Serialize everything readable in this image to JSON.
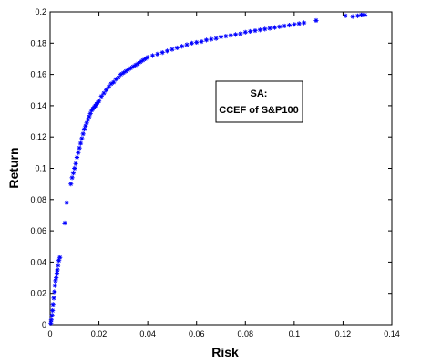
{
  "chart_data": {
    "type": "scatter",
    "xlabel": "Risk",
    "ylabel": "Return",
    "xlim": [
      0,
      0.14
    ],
    "ylim": [
      0,
      0.2
    ],
    "x_ticks": [
      "0",
      "0.02",
      "0.04",
      "0.06",
      "0.08",
      "0.1",
      "0.12",
      "0.14"
    ],
    "y_ticks": [
      "0",
      "0.02",
      "0.04",
      "0.06",
      "0.08",
      "0.1",
      "0.12",
      "0.14",
      "0.16",
      "0.18",
      "0.2"
    ],
    "grid": false,
    "legend_position": "center-right",
    "legend_lines": [
      "SA:",
      "CCEF of S&P100"
    ],
    "marker_color": "#0000ff",
    "series": [
      {
        "x": [
          0.0003,
          0.0005,
          0.0008,
          0.001,
          0.0012,
          0.0015,
          0.0018,
          0.002,
          0.0022,
          0.0025,
          0.0028,
          0.003,
          0.0033,
          0.0036,
          0.004,
          0.006,
          0.0068,
          0.0085,
          0.009,
          0.0095,
          0.01,
          0.0105,
          0.011,
          0.0115,
          0.012,
          0.0125,
          0.013,
          0.0135,
          0.014,
          0.0145,
          0.015,
          0.0155,
          0.016,
          0.0165,
          0.017,
          0.0175,
          0.018,
          0.0185,
          0.019,
          0.0195,
          0.02,
          0.021,
          0.022,
          0.023,
          0.024,
          0.025,
          0.026,
          0.027,
          0.028,
          0.029,
          0.03,
          0.031,
          0.032,
          0.033,
          0.034,
          0.035,
          0.036,
          0.037,
          0.038,
          0.039,
          0.04,
          0.042,
          0.044,
          0.046,
          0.048,
          0.05,
          0.052,
          0.054,
          0.056,
          0.058,
          0.06,
          0.062,
          0.064,
          0.066,
          0.068,
          0.07,
          0.072,
          0.074,
          0.076,
          0.078,
          0.08,
          0.082,
          0.084,
          0.086,
          0.088,
          0.09,
          0.092,
          0.094,
          0.096,
          0.098,
          0.1,
          0.102,
          0.104,
          0.109,
          0.121,
          0.124,
          0.126,
          0.1275,
          0.128,
          0.129
        ],
        "y": [
          0.001,
          0.003,
          0.006,
          0.009,
          0.013,
          0.017,
          0.021,
          0.025,
          0.028,
          0.03,
          0.033,
          0.035,
          0.038,
          0.041,
          0.043,
          0.065,
          0.078,
          0.09,
          0.094,
          0.097,
          0.1,
          0.103,
          0.107,
          0.11,
          0.113,
          0.116,
          0.119,
          0.122,
          0.125,
          0.127,
          0.129,
          0.131,
          0.133,
          0.135,
          0.137,
          0.138,
          0.139,
          0.14,
          0.141,
          0.142,
          0.143,
          0.146,
          0.148,
          0.15,
          0.152,
          0.154,
          0.155,
          0.157,
          0.158,
          0.16,
          0.161,
          0.162,
          0.163,
          0.164,
          0.165,
          0.166,
          0.167,
          0.168,
          0.169,
          0.17,
          0.171,
          0.172,
          0.173,
          0.174,
          0.175,
          0.176,
          0.177,
          0.178,
          0.179,
          0.18,
          0.1805,
          0.181,
          0.182,
          0.1825,
          0.183,
          0.184,
          0.1845,
          0.185,
          0.1855,
          0.186,
          0.187,
          0.1875,
          0.188,
          0.1885,
          0.189,
          0.1895,
          0.19,
          0.1905,
          0.191,
          0.1915,
          0.192,
          0.1925,
          0.193,
          0.1945,
          0.1975,
          0.197,
          0.1975,
          0.198,
          0.198,
          0.198
        ]
      }
    ]
  }
}
